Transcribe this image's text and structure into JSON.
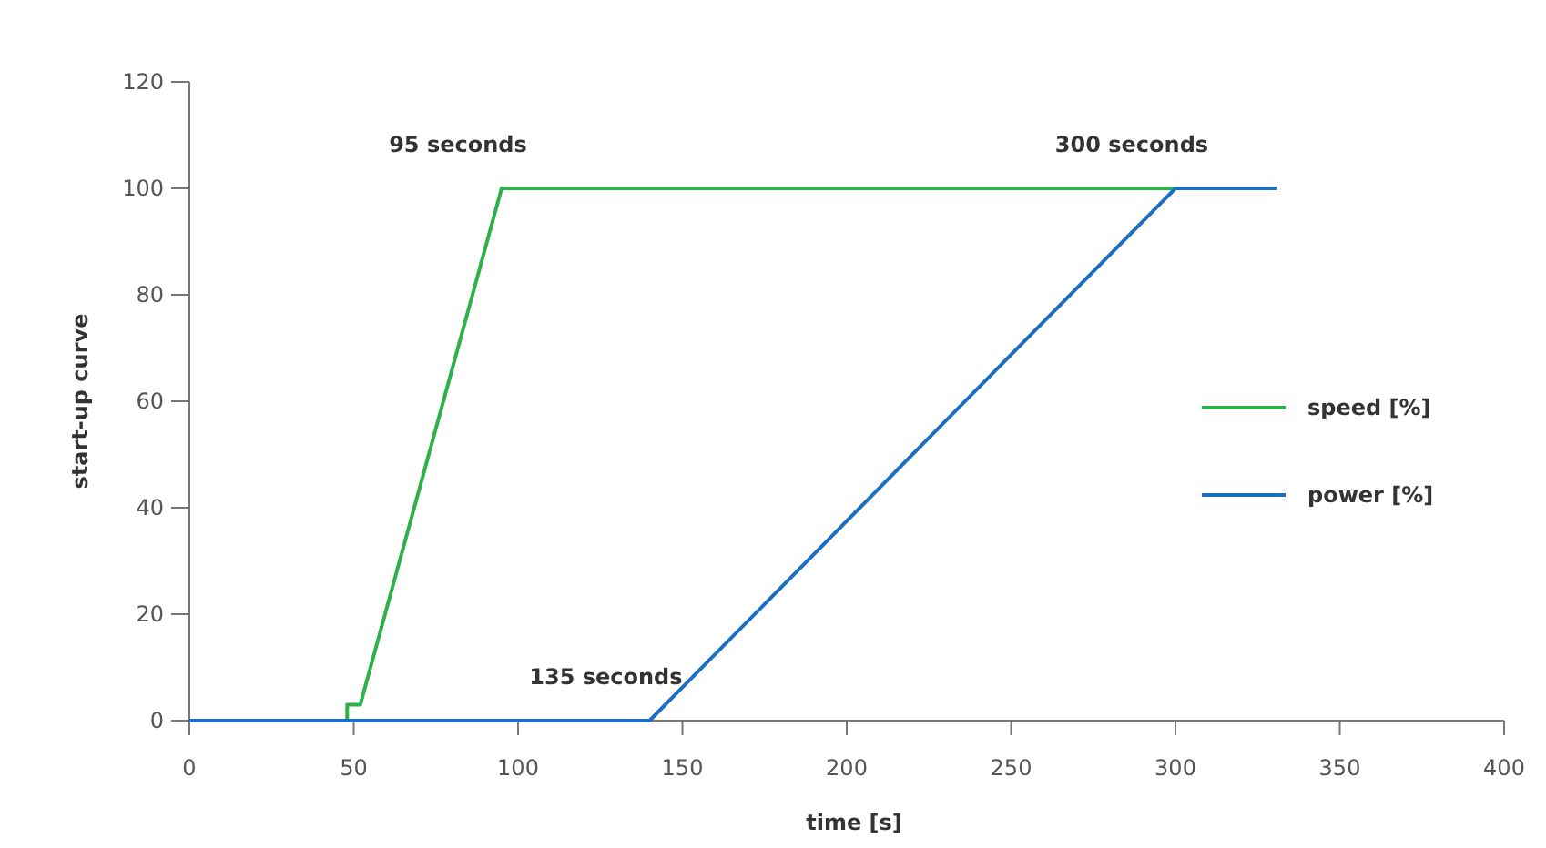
{
  "chart_data": {
    "type": "line",
    "xlabel": "time [s]",
    "ylabel": "start-up curve",
    "xlim": [
      0,
      400
    ],
    "ylim": [
      0,
      120
    ],
    "xticks": [
      0,
      50,
      100,
      150,
      200,
      250,
      300,
      350,
      400
    ],
    "yticks": [
      0,
      20,
      40,
      60,
      80,
      100,
      120
    ],
    "grid": false,
    "legend": "right",
    "marker": "none",
    "line_style": "solid",
    "series": [
      {
        "name": "speed [%]",
        "color": "#2eb04a",
        "x": [
          0,
          48,
          48,
          52,
          95,
          300
        ],
        "values": [
          0,
          0,
          3,
          3,
          100,
          100
        ]
      },
      {
        "name": "power [%]",
        "color": "#1b6ec2",
        "x": [
          0,
          140,
          300,
          331
        ],
        "values": [
          0,
          0,
          100,
          100
        ]
      }
    ],
    "annotations": [
      {
        "text": "95 seconds",
        "x": 95,
        "y": 100
      },
      {
        "text": "300 seconds",
        "x": 300,
        "y": 100
      },
      {
        "text": "135 seconds",
        "x": 140,
        "y": 0
      }
    ]
  }
}
